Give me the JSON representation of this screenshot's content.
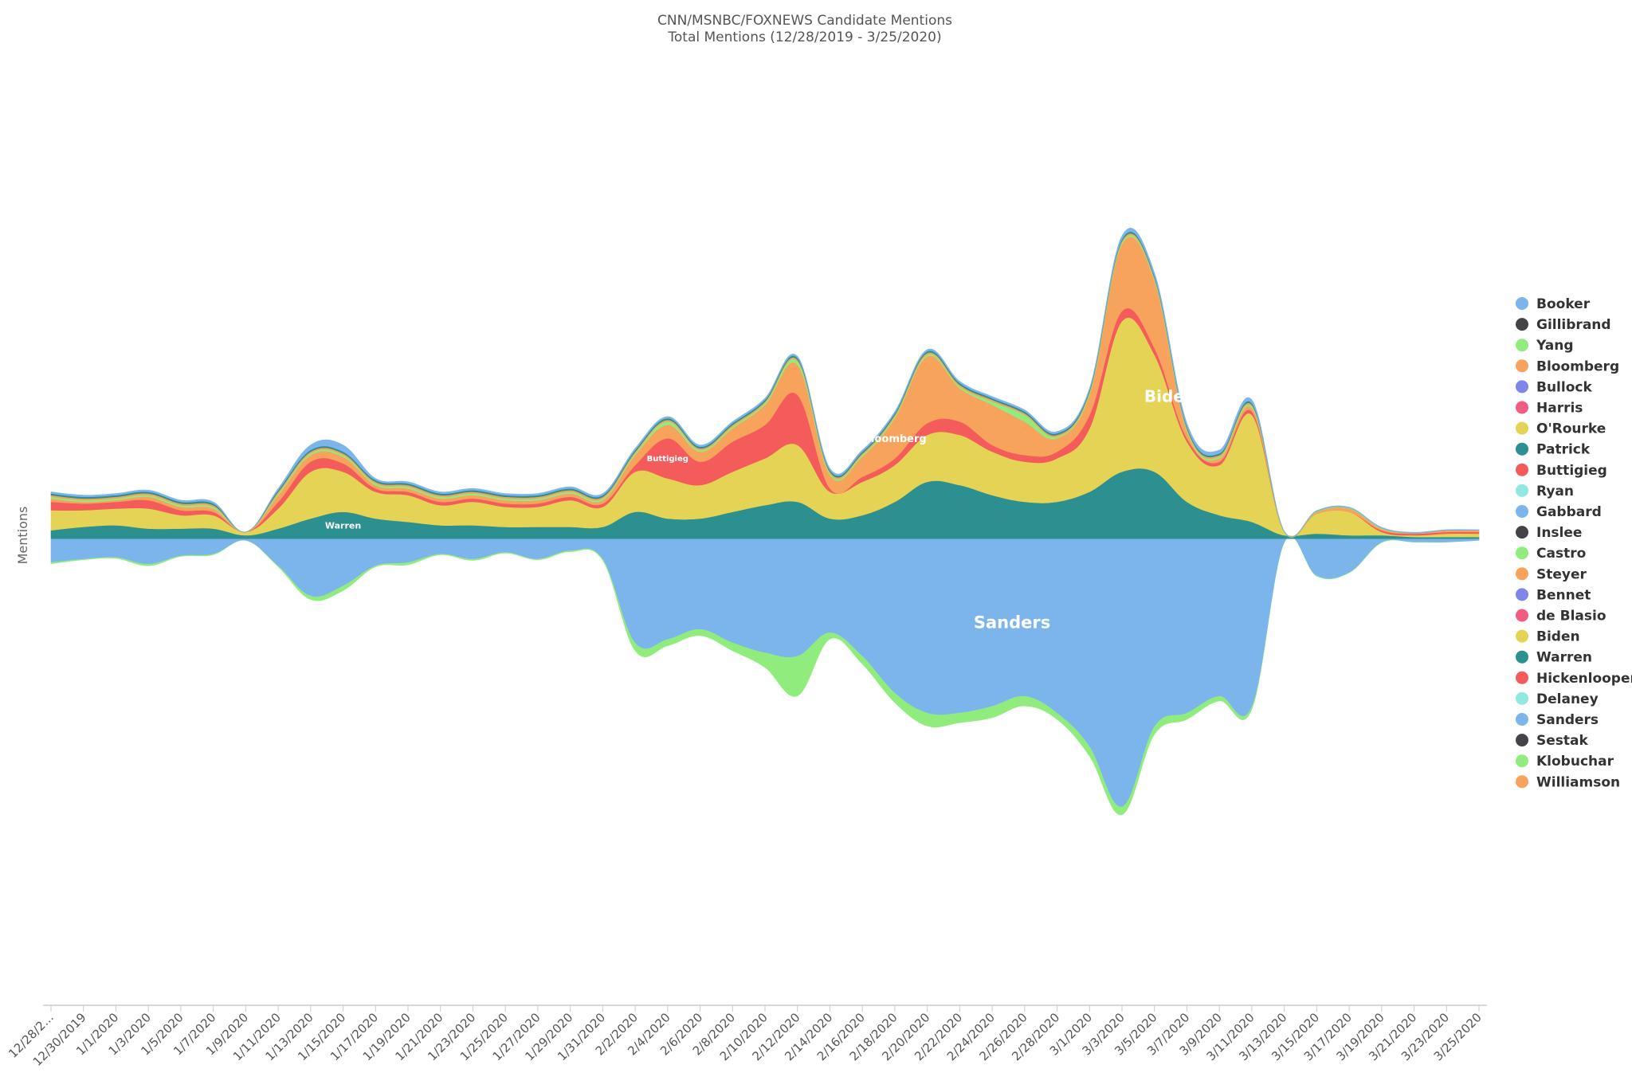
{
  "chart_data": {
    "type": "streamgraph",
    "title": "CNN/MSNBC/FOXNEWS Candidate Mentions",
    "subtitle": "Total Mentions (12/28/2019 - 3/25/2020)",
    "ylabel": "Mentions",
    "categories": [
      "12/28/2...",
      "12/30/2019",
      "1/1/2020",
      "1/3/2020",
      "1/5/2020",
      "1/7/2020",
      "1/9/2020",
      "1/11/2020",
      "1/13/2020",
      "1/15/2020",
      "1/17/2020",
      "1/19/2020",
      "1/21/2020",
      "1/23/2020",
      "1/25/2020",
      "1/27/2020",
      "1/29/2020",
      "1/31/2020",
      "2/2/2020",
      "2/4/2020",
      "2/6/2020",
      "2/8/2020",
      "2/10/2020",
      "2/12/2020",
      "2/14/2020",
      "2/16/2020",
      "2/18/2020",
      "2/20/2020",
      "2/22/2020",
      "2/24/2020",
      "2/26/2020",
      "2/28/2020",
      "3/1/2020",
      "3/3/2020",
      "3/5/2020",
      "3/7/2020",
      "3/9/2020",
      "3/11/2020",
      "3/13/2020",
      "3/15/2020",
      "3/17/2020",
      "3/19/2020",
      "3/21/2020",
      "3/23/2020",
      "3/25/2020"
    ],
    "legend": [
      {
        "name": "Booker",
        "color": "#7cb5ec"
      },
      {
        "name": "Gillibrand",
        "color": "#434348"
      },
      {
        "name": "Yang",
        "color": "#90ed7d"
      },
      {
        "name": "Bloomberg",
        "color": "#f7a35c"
      },
      {
        "name": "Bullock",
        "color": "#8085e9"
      },
      {
        "name": "Harris",
        "color": "#f15c80"
      },
      {
        "name": "O'Rourke",
        "color": "#e4d354"
      },
      {
        "name": "Patrick",
        "color": "#2b908f"
      },
      {
        "name": "Buttigieg",
        "color": "#f45b5b"
      },
      {
        "name": "Ryan",
        "color": "#91e8e1"
      },
      {
        "name": "Gabbard",
        "color": "#7cb5ec"
      },
      {
        "name": "Inslee",
        "color": "#434348"
      },
      {
        "name": "Castro",
        "color": "#90ed7d"
      },
      {
        "name": "Steyer",
        "color": "#f7a35c"
      },
      {
        "name": "Bennet",
        "color": "#8085e9"
      },
      {
        "name": "de Blasio",
        "color": "#f15c80"
      },
      {
        "name": "Biden",
        "color": "#e4d354"
      },
      {
        "name": "Warren",
        "color": "#2b908f"
      },
      {
        "name": "Hickenlooper",
        "color": "#f45b5b"
      },
      {
        "name": "Delaney",
        "color": "#91e8e1"
      },
      {
        "name": "Sanders",
        "color": "#7cb5ec"
      },
      {
        "name": "Sestak",
        "color": "#434348"
      },
      {
        "name": "Klobuchar",
        "color": "#90ed7d"
      },
      {
        "name": "Williamson",
        "color": "#f7a35c"
      }
    ],
    "series": [
      {
        "name": "Klobuchar",
        "color": "#90ed7d",
        "values": [
          5,
          3,
          4,
          6,
          3,
          3,
          0,
          4,
          12,
          15,
          4,
          8,
          3,
          5,
          3,
          3,
          4,
          5,
          25,
          20,
          20,
          25,
          45,
          120,
          20,
          25,
          30,
          40,
          30,
          35,
          30,
          20,
          30,
          25,
          25,
          20,
          15,
          10,
          2,
          2,
          2,
          2,
          0,
          0,
          0
        ]
      },
      {
        "name": "Sanders",
        "color": "#7cb5ec",
        "values": [
          70,
          60,
          55,
          75,
          50,
          45,
          5,
          80,
          170,
          140,
          80,
          70,
          45,
          60,
          40,
          60,
          35,
          60,
          310,
          300,
          270,
          310,
          340,
          350,
          280,
          350,
          460,
          520,
          520,
          500,
          470,
          520,
          620,
          800,
          560,
          520,
          470,
          500,
          10,
          110,
          100,
          10,
          10,
          10,
          5
        ]
      },
      {
        "name": "Warren",
        "color": "#2b908f",
        "values": [
          25,
          35,
          40,
          30,
          30,
          30,
          10,
          30,
          60,
          80,
          60,
          50,
          40,
          40,
          35,
          35,
          35,
          35,
          80,
          60,
          60,
          80,
          100,
          110,
          60,
          70,
          110,
          170,
          160,
          130,
          110,
          110,
          140,
          200,
          200,
          110,
          70,
          50,
          10,
          15,
          10,
          10,
          5,
          5,
          5
        ]
      },
      {
        "name": "Biden",
        "color": "#e4d354",
        "values": [
          60,
          50,
          50,
          60,
          40,
          40,
          10,
          60,
          140,
          120,
          80,
          80,
          60,
          70,
          60,
          60,
          80,
          60,
          120,
          120,
          100,
          120,
          140,
          170,
          80,
          100,
          110,
          140,
          150,
          130,
          120,
          130,
          190,
          450,
          350,
          180,
          150,
          320,
          10,
          60,
          70,
          10,
          5,
          10,
          10
        ]
      },
      {
        "name": "Buttigieg",
        "color": "#f45b5b",
        "values": [
          25,
          20,
          20,
          25,
          15,
          10,
          0,
          20,
          30,
          25,
          10,
          10,
          10,
          10,
          10,
          10,
          10,
          10,
          20,
          120,
          70,
          90,
          100,
          150,
          10,
          15,
          20,
          35,
          40,
          20,
          20,
          20,
          40,
          30,
          20,
          10,
          10,
          10,
          0,
          0,
          0,
          5,
          5,
          5,
          5
        ]
      },
      {
        "name": "Bloomberg",
        "color": "#f7a35c",
        "values": [
          10,
          5,
          5,
          10,
          10,
          10,
          0,
          20,
          20,
          20,
          10,
          10,
          10,
          10,
          10,
          10,
          10,
          10,
          30,
          40,
          30,
          40,
          60,
          90,
          40,
          60,
          120,
          200,
          100,
          120,
          100,
          40,
          60,
          200,
          200,
          20,
          10,
          10,
          0,
          5,
          10,
          5,
          2,
          5,
          5
        ]
      },
      {
        "name": "Yang",
        "color": "#90ed7d",
        "values": [
          5,
          5,
          5,
          5,
          5,
          5,
          0,
          5,
          5,
          5,
          5,
          5,
          5,
          5,
          5,
          5,
          5,
          5,
          5,
          10,
          5,
          5,
          5,
          10,
          5,
          5,
          5,
          5,
          5,
          10,
          20,
          5,
          5,
          5,
          5,
          5,
          5,
          5,
          2,
          2,
          2,
          2,
          0,
          0,
          0
        ]
      },
      {
        "name": "Steyer",
        "color": "#f7a35c",
        "values": [
          5,
          5,
          5,
          5,
          5,
          5,
          0,
          5,
          5,
          5,
          5,
          5,
          5,
          5,
          5,
          5,
          5,
          5,
          5,
          5,
          5,
          5,
          5,
          5,
          5,
          5,
          5,
          5,
          5,
          5,
          5,
          5,
          5,
          5,
          5,
          5,
          5,
          5,
          0,
          0,
          0,
          0,
          0,
          0,
          0
        ]
      },
      {
        "name": "Patrick",
        "color": "#2b908f",
        "values": [
          5,
          5,
          5,
          5,
          5,
          5,
          0,
          5,
          5,
          5,
          5,
          5,
          5,
          5,
          5,
          5,
          5,
          5,
          5,
          5,
          5,
          5,
          5,
          5,
          5,
          5,
          5,
          5,
          5,
          5,
          5,
          5,
          5,
          5,
          5,
          5,
          5,
          5,
          0,
          0,
          0,
          0,
          0,
          0,
          0
        ]
      },
      {
        "name": "Gabbard",
        "color": "#7cb5ec",
        "values": [
          5,
          5,
          5,
          5,
          5,
          5,
          0,
          5,
          15,
          20,
          5,
          5,
          5,
          5,
          5,
          5,
          5,
          5,
          5,
          5,
          5,
          5,
          5,
          5,
          5,
          5,
          5,
          5,
          5,
          5,
          5,
          5,
          5,
          10,
          10,
          10,
          10,
          10,
          0,
          2,
          2,
          2,
          2,
          2,
          2
        ]
      }
    ],
    "stream_labels": [
      "Warren",
      "Buttigieg",
      "Bloomberg",
      "Biden",
      "Sanders"
    ]
  }
}
